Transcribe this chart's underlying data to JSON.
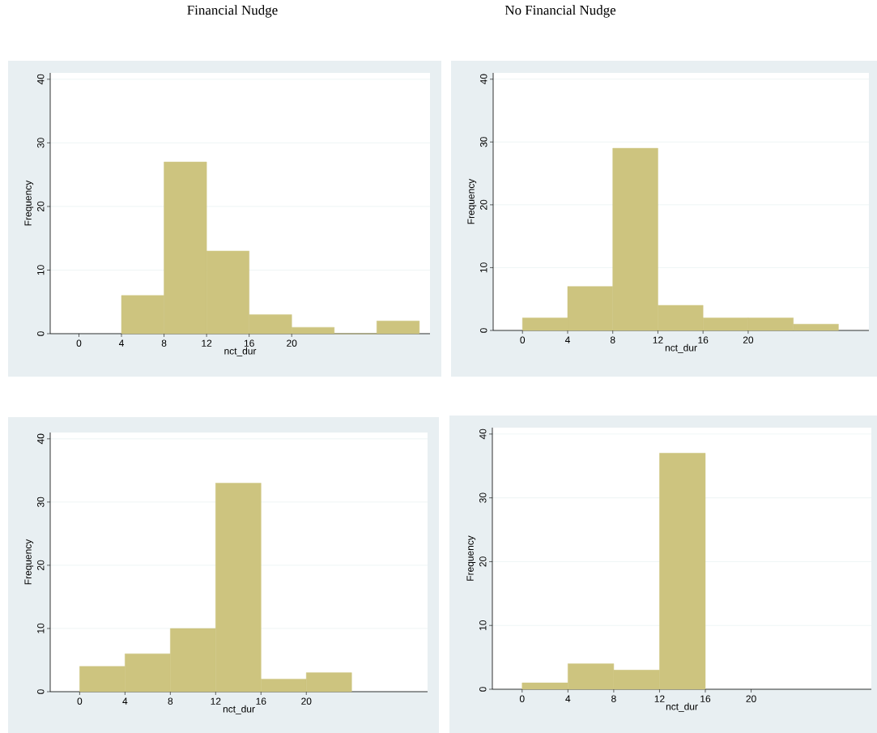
{
  "chart_data": [
    {
      "type": "histogram",
      "title": "Financial Nudge",
      "xlabel": "nct_dur",
      "ylabel": "Frequency",
      "bins": [
        4,
        8,
        12,
        16,
        20,
        24,
        28,
        32
      ],
      "values": [
        6,
        27,
        13,
        3,
        1,
        0,
        2
      ],
      "color": "#cdc47f",
      "xlim": [
        -2.7,
        33
      ],
      "ylim": [
        0,
        41
      ],
      "xticks": [
        0,
        4,
        8,
        12,
        16,
        20
      ],
      "yticks": [
        0,
        10,
        20,
        30,
        40
      ],
      "grid": "y"
    },
    {
      "type": "histogram",
      "title": "No Financial Nudge",
      "xlabel": "nct_dur",
      "ylabel": "Frequency",
      "bins": [
        0,
        4,
        8,
        12,
        16,
        20,
        24,
        28
      ],
      "values": [
        2,
        7,
        29,
        4,
        2,
        2,
        1
      ],
      "color": "#cdc47f",
      "xlim": [
        -2.6,
        30.7
      ],
      "ylim": [
        0,
        41
      ],
      "xticks": [
        0,
        4,
        8,
        12,
        16,
        20
      ],
      "yticks": [
        0,
        10,
        20,
        30,
        40
      ],
      "grid": "y"
    },
    {
      "type": "histogram",
      "xlabel": "nct_dur",
      "ylabel": "Frequency",
      "bins": [
        0,
        4,
        8,
        12,
        16,
        20,
        24
      ],
      "values": [
        4,
        6,
        10,
        33,
        2,
        3
      ],
      "color": "#cdc47f",
      "xlim": [
        -2.6,
        30.7
      ],
      "ylim": [
        0,
        41
      ],
      "xticks": [
        0,
        4,
        8,
        12,
        16,
        20
      ],
      "yticks": [
        0,
        10,
        20,
        30,
        40
      ],
      "grid": "y"
    },
    {
      "type": "histogram",
      "xlabel": "nct_dur",
      "ylabel": "Frequency",
      "bins": [
        0,
        4,
        8,
        12,
        16
      ],
      "values": [
        1,
        4,
        3,
        37
      ],
      "color": "#cdc47f",
      "xlim": [
        -2.6,
        30.5
      ],
      "ylim": [
        0,
        41
      ],
      "xticks": [
        0,
        4,
        8,
        12,
        16,
        20
      ],
      "yticks": [
        0,
        10,
        20,
        30,
        40
      ],
      "grid": "y"
    }
  ]
}
